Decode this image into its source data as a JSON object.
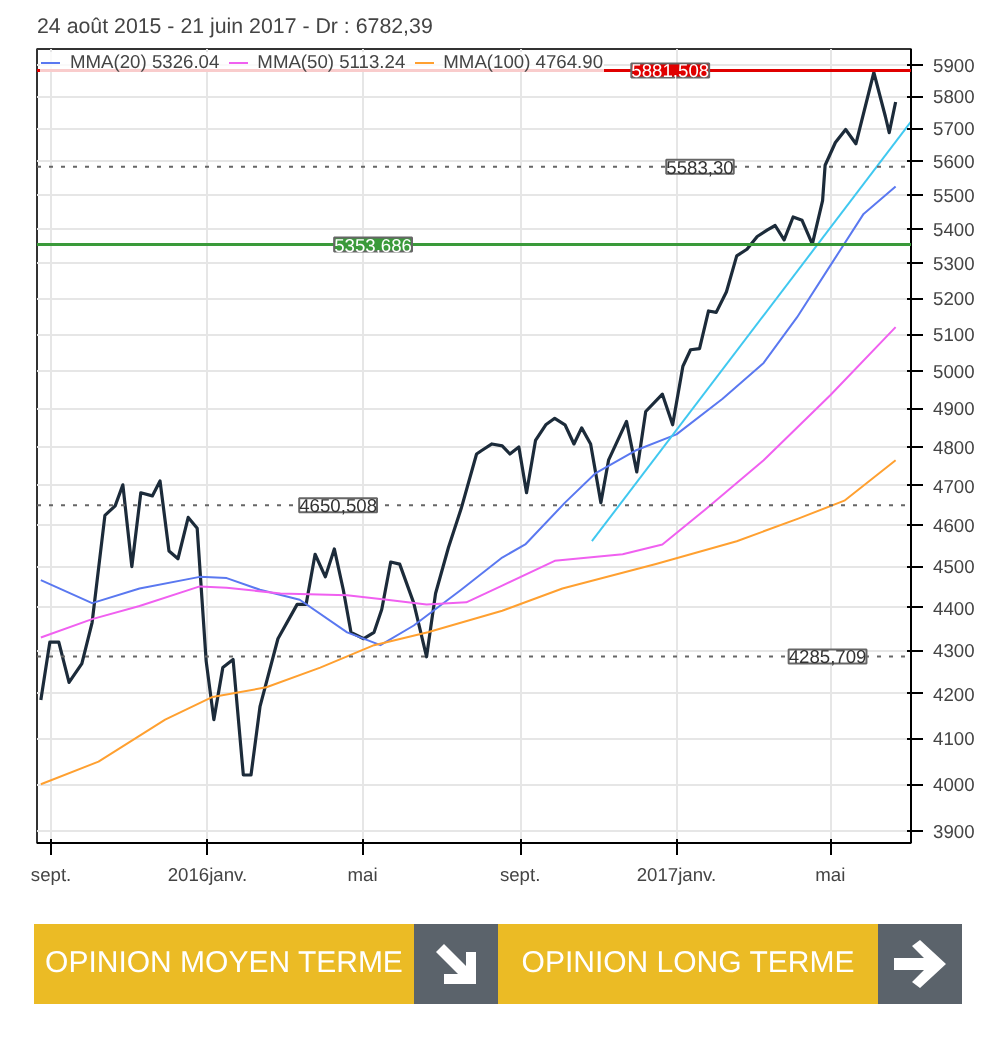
{
  "chart_data": {
    "type": "line",
    "title": "24 août 2015 - 21 juin 2017 - Dr : 6782,39",
    "log": "y",
    "grid": true,
    "legend": "top left",
    "tick_labels": "xy",
    "xlim": [
      "2015-08-21",
      "2017-07-03"
    ],
    "ylim": [
      3875,
      5950
    ],
    "xticks": [
      {
        "value": "2015-09-01",
        "label": "sept."
      },
      {
        "value": "2016-01-01",
        "label": "2016janv."
      },
      {
        "value": "2016-05-01",
        "label": "mai"
      },
      {
        "value": "2016-09-01",
        "label": "sept."
      },
      {
        "value": "2017-01-01",
        "label": "2017janv."
      },
      {
        "value": "2017-05-01",
        "label": "mai"
      }
    ],
    "yticks": [
      3900,
      4000,
      4100,
      4200,
      4300,
      4400,
      4500,
      4600,
      4700,
      4800,
      4900,
      5000,
      5100,
      5200,
      5300,
      5400,
      5500,
      5600,
      5700,
      5800,
      5900
    ],
    "series": [
      {
        "color": "#1c2b3a",
        "x": [
          "2015-08-24",
          "2015-08-31",
          "2015-09-07",
          "2015-09-15",
          "2015-09-25",
          "2015-10-03",
          "2015-10-13",
          "2015-10-21",
          "2015-10-27",
          "2015-11-03",
          "2015-11-10",
          "2015-11-19",
          "2015-11-25",
          "2015-12-02",
          "2015-12-09",
          "2015-12-17",
          "2015-12-24",
          "2015-12-31",
          "2016-01-06",
          "2016-01-13",
          "2016-01-21",
          "2016-01-29",
          "2016-02-04",
          "2016-02-11",
          "2016-02-25",
          "2016-03-11",
          "2016-03-18",
          "2016-03-25",
          "2016-04-02",
          "2016-04-09",
          "2016-04-16",
          "2016-04-22",
          "2016-05-02",
          "2016-05-10",
          "2016-05-16",
          "2016-05-23",
          "2016-05-30",
          "2016-06-10",
          "2016-06-20",
          "2016-06-27",
          "2016-07-07",
          "2016-07-17",
          "2016-07-29",
          "2016-08-02",
          "2016-08-10",
          "2016-08-18",
          "2016-08-24",
          "2016-08-31",
          "2016-09-06",
          "2016-09-13",
          "2016-09-21",
          "2016-09-28",
          "2016-10-06",
          "2016-10-13",
          "2016-10-19",
          "2016-10-26",
          "2016-11-03",
          "2016-11-09",
          "2016-11-23",
          "2016-12-01",
          "2016-12-08",
          "2016-12-21",
          "2016-12-29",
          "2017-01-06",
          "2017-01-12",
          "2017-01-19",
          "2017-01-26",
          "2017-02-01",
          "2017-02-09",
          "2017-02-17",
          "2017-02-25",
          "2017-03-05",
          "2017-03-13",
          "2017-03-19",
          "2017-03-26",
          "2017-04-02",
          "2017-04-09",
          "2017-04-17",
          "2017-04-25",
          "2017-04-27",
          "2017-05-05",
          "2017-05-13",
          "2017-05-21",
          "2017-06-04",
          "2017-06-13",
          "2017-06-16",
          "2017-06-21"
        ],
        "values": [
          4186,
          4319,
          4319,
          4226,
          4269,
          4365,
          4625,
          4649,
          4702,
          4499,
          4682,
          4674,
          4712,
          4537,
          4518,
          4620,
          4593,
          4275,
          4142,
          4260,
          4279,
          4020,
          4020,
          4171,
          4327,
          4408,
          4408,
          4529,
          4474,
          4542,
          4443,
          4342,
          4327,
          4342,
          4396,
          4510,
          4505,
          4411,
          4285,
          4434,
          4545,
          4642,
          4781,
          4790,
          4807,
          4802,
          4781,
          4799,
          4682,
          4816,
          4857,
          4874,
          4857,
          4807,
          4849,
          4807,
          4657,
          4765,
          4866,
          4735,
          4892,
          4938,
          4857,
          5013,
          5058,
          5061,
          5165,
          5161,
          5219,
          5321,
          5340,
          5377,
          5396,
          5409,
          5367,
          5434,
          5424,
          5355,
          5482,
          5588,
          5657,
          5697,
          5653,
          5875,
          5737,
          5687,
          5782
        ]
      },
      {
        "name": "MMA(20) 5326.04",
        "color": "#5a78f0",
        "x": [
          "2015-08-24",
          "2015-10-03",
          "2015-11-09",
          "2015-12-26",
          "2016-01-16",
          "2016-02-11",
          "2016-03-13",
          "2016-04-19",
          "2016-05-15",
          "2016-06-10",
          "2016-07-17",
          "2016-08-18",
          "2016-09-05",
          "2016-10-06",
          "2016-10-30",
          "2016-11-30",
          "2017-01-01",
          "2017-02-06",
          "2017-03-10",
          "2017-04-05",
          "2017-05-01",
          "2017-05-27",
          "2017-06-21"
        ],
        "values": [
          4466,
          4411,
          4446,
          4474,
          4471,
          4443,
          4419,
          4342,
          4312,
          4358,
          4443,
          4521,
          4553,
          4657,
          4732,
          4790,
          4832,
          4926,
          5022,
          5147,
          5293,
          5443,
          5524
        ]
      },
      {
        "name": "MMA(50) 5113.24",
        "color": "#f060f0",
        "x": [
          "2015-08-24",
          "2015-10-03",
          "2015-11-09",
          "2015-12-26",
          "2016-01-16",
          "2016-02-27",
          "2016-04-19",
          "2016-05-20",
          "2016-06-20",
          "2016-07-21",
          "2016-08-18",
          "2016-09-28",
          "2016-11-20",
          "2016-12-21",
          "2017-01-27",
          "2017-03-10",
          "2017-05-01",
          "2017-06-21"
        ],
        "values": [
          4330,
          4373,
          4404,
          4451,
          4448,
          4434,
          4430,
          4419,
          4408,
          4413,
          4453,
          4513,
          4529,
          4553,
          4649,
          4765,
          4935,
          5120
        ]
      },
      {
        "name": "MMA(100) 4764.90",
        "color": "#ffa030",
        "x": [
          "2015-08-24",
          "2015-10-08",
          "2015-11-29",
          "2016-01-05",
          "2016-02-16",
          "2016-03-29",
          "2016-05-10",
          "2016-06-21",
          "2016-08-18",
          "2016-10-04",
          "2016-12-16",
          "2017-02-17",
          "2017-04-06",
          "2017-05-12",
          "2017-06-21"
        ],
        "values": [
          4000,
          4049,
          4142,
          4193,
          4215,
          4260,
          4312,
          4342,
          4393,
          4446,
          4505,
          4561,
          4617,
          4662,
          4765
        ]
      },
      {
        "color": "#40c8f0",
        "x": [
          "2016-10-27",
          "2017-07-03"
        ],
        "values": [
          4561,
          5721
        ]
      }
    ],
    "ref_lines": [
      {
        "axis": "y",
        "value": 5881.508,
        "label": "5881,508",
        "color": "#e00000",
        "line_style": "solid"
      },
      {
        "axis": "y",
        "value": 5583.3,
        "label": "5583,30",
        "color": "#666666",
        "line_style": "dotted"
      },
      {
        "axis": "y",
        "value": 5353.686,
        "label": "5353,686",
        "color": "#3a9a3a",
        "line_style": "solid"
      },
      {
        "axis": "y",
        "value": 4650.508,
        "label": "4650,508",
        "color": "#666666",
        "line_style": "dotted"
      },
      {
        "axis": "y",
        "value": 4285.709,
        "label": "4285,709",
        "color": "#666666",
        "line_style": "dotted"
      }
    ],
    "annotations": [
      "OPINION MOYEN TERME",
      "OPINION LONG TERME"
    ]
  }
}
